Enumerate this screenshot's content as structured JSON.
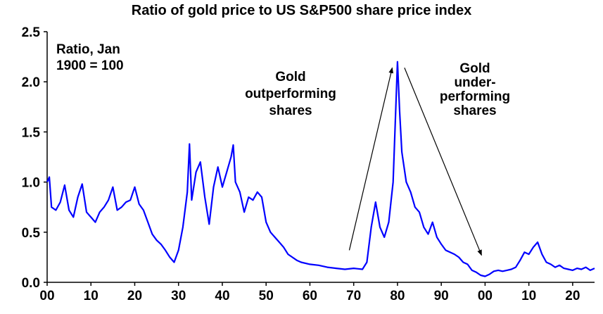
{
  "chart_data": {
    "type": "line",
    "title": "Ratio of gold price to US S&P500 share price index",
    "xlabel": "",
    "ylabel": "",
    "ylim": [
      0.0,
      2.5
    ],
    "xlim": [
      1900,
      2025
    ],
    "x_ticks": [
      1900,
      1910,
      1920,
      1930,
      1940,
      1950,
      1960,
      1970,
      1980,
      1990,
      2000,
      2010,
      2020
    ],
    "x_tick_labels": [
      "00",
      "10",
      "20",
      "30",
      "40",
      "50",
      "60",
      "70",
      "80",
      "90",
      "00",
      "10",
      "20"
    ],
    "y_ticks": [
      0.0,
      0.5,
      1.0,
      1.5,
      2.0,
      2.5
    ],
    "y_tick_labels": [
      "0.0",
      "0.5",
      "1.0",
      "1.5",
      "2.0",
      "2.5"
    ],
    "grid": false,
    "series": [
      {
        "name": "Ratio of gold price to S&P500",
        "color": "#0000ff",
        "x": [
          1900,
          1900.5,
          1901,
          1902,
          1903,
          1904,
          1905,
          1906,
          1907,
          1908,
          1909,
          1910,
          1911,
          1912,
          1913,
          1914,
          1915,
          1916,
          1917,
          1918,
          1919,
          1920,
          1921,
          1922,
          1923,
          1924,
          1925,
          1926,
          1927,
          1928,
          1929,
          1930,
          1931,
          1932,
          1932.5,
          1933,
          1934,
          1935,
          1936,
          1937,
          1938,
          1939,
          1940,
          1941,
          1942,
          1942.5,
          1943,
          1944,
          1945,
          1946,
          1947,
          1948,
          1949,
          1950,
          1951,
          1952,
          1953,
          1954,
          1955,
          1956,
          1957,
          1958,
          1960,
          1962,
          1964,
          1966,
          1968,
          1970,
          1972,
          1973,
          1974,
          1975,
          1976,
          1977,
          1978,
          1979,
          1980,
          1980.5,
          1981,
          1982,
          1983,
          1984,
          1985,
          1986,
          1987,
          1988,
          1989,
          1990,
          1991,
          1992,
          1993,
          1994,
          1995,
          1996,
          1997,
          1998,
          1999,
          2000,
          2001,
          2002,
          2003,
          2004,
          2005,
          2006,
          2007,
          2008,
          2009,
          2010,
          2011,
          2012,
          2013,
          2014,
          2015,
          2016,
          2017,
          2018,
          2019,
          2020,
          2021,
          2022,
          2023,
          2024,
          2025
        ],
        "values": [
          1.0,
          1.05,
          0.75,
          0.72,
          0.8,
          0.97,
          0.72,
          0.65,
          0.85,
          0.98,
          0.7,
          0.65,
          0.6,
          0.7,
          0.75,
          0.82,
          0.95,
          0.72,
          0.75,
          0.8,
          0.82,
          0.95,
          0.78,
          0.72,
          0.6,
          0.48,
          0.42,
          0.38,
          0.32,
          0.25,
          0.2,
          0.32,
          0.55,
          0.9,
          1.38,
          0.82,
          1.1,
          1.2,
          0.85,
          0.58,
          0.95,
          1.15,
          0.95,
          1.1,
          1.25,
          1.37,
          1.0,
          0.9,
          0.7,
          0.85,
          0.82,
          0.9,
          0.85,
          0.6,
          0.5,
          0.45,
          0.4,
          0.35,
          0.28,
          0.25,
          0.22,
          0.2,
          0.18,
          0.17,
          0.15,
          0.14,
          0.13,
          0.14,
          0.13,
          0.2,
          0.55,
          0.8,
          0.55,
          0.45,
          0.6,
          1.0,
          2.2,
          1.7,
          1.3,
          1.0,
          0.9,
          0.75,
          0.7,
          0.55,
          0.48,
          0.6,
          0.45,
          0.38,
          0.32,
          0.3,
          0.28,
          0.25,
          0.2,
          0.18,
          0.12,
          0.1,
          0.07,
          0.06,
          0.08,
          0.11,
          0.12,
          0.11,
          0.12,
          0.13,
          0.15,
          0.22,
          0.3,
          0.28,
          0.35,
          0.4,
          0.28,
          0.2,
          0.18,
          0.15,
          0.17,
          0.14,
          0.13,
          0.12,
          0.14,
          0.13,
          0.15,
          0.12,
          0.14
        ]
      }
    ],
    "annotations": [
      {
        "lines": [
          "Ratio, Jan",
          "1900  = 100"
        ]
      },
      {
        "lines": [
          "Gold",
          "outperforming",
          "shares"
        ]
      },
      {
        "lines": [
          "Gold",
          "under-",
          "performing",
          "shares"
        ]
      }
    ],
    "arrows": [
      {
        "from": [
          1969,
          0.32
        ],
        "to": [
          1978.8,
          2.14
        ]
      },
      {
        "from": [
          1981.6,
          2.14
        ],
        "to": [
          1999.2,
          0.27
        ]
      }
    ]
  }
}
